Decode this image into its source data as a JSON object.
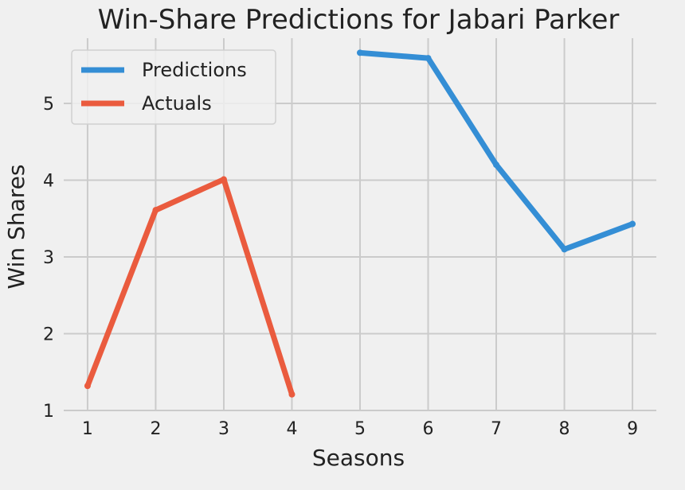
{
  "chart_data": {
    "type": "line",
    "title": "Win-Share Predictions for Jabari Parker",
    "xlabel": "Seasons",
    "ylabel": "Win Shares",
    "x_ticks": [
      1,
      2,
      3,
      4,
      5,
      6,
      7,
      8,
      9
    ],
    "y_ticks": [
      1,
      2,
      3,
      4,
      5
    ],
    "xlim": [
      0.65,
      9.35
    ],
    "ylim": [
      1.0,
      5.85
    ],
    "grid": true,
    "legend_position": "top-left",
    "series": [
      {
        "name": "Predictions",
        "color": "#348ed5",
        "x": [
          5,
          6,
          7,
          8,
          9
        ],
        "y": [
          5.66,
          5.59,
          4.2,
          3.1,
          3.43
        ]
      },
      {
        "name": "Actuals",
        "color": "#ea5b3e",
        "x": [
          1,
          2,
          3,
          4
        ],
        "y": [
          1.32,
          3.61,
          4.01,
          1.21
        ]
      }
    ]
  }
}
